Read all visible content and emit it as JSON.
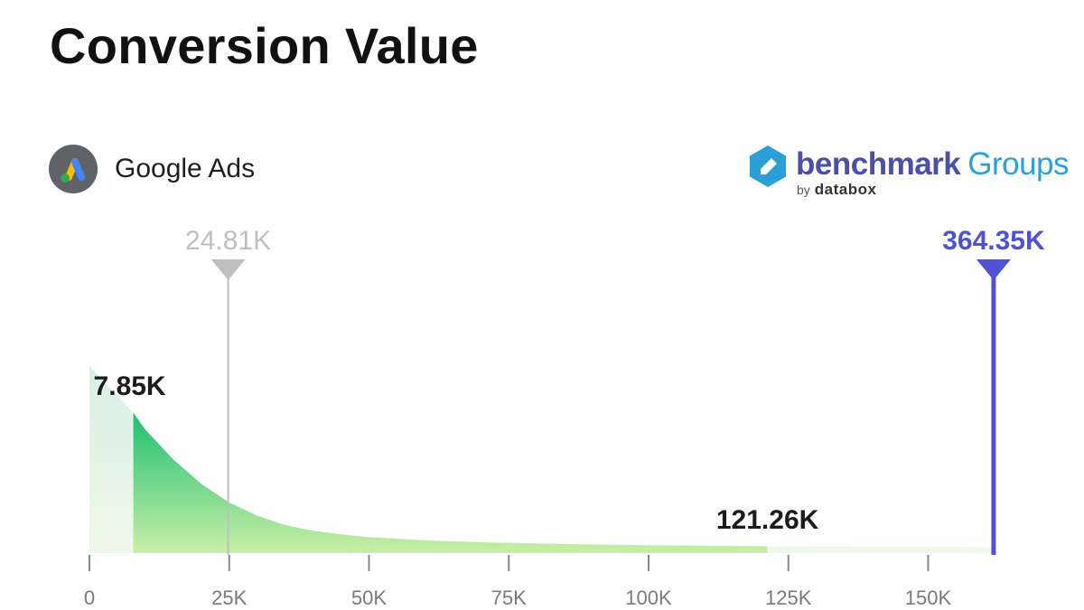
{
  "title": "Conversion Value",
  "source": {
    "name": "Google Ads",
    "icon": "google-ads-icon"
  },
  "brand": {
    "name": "benchmark",
    "suffix": "Groups",
    "by": "by",
    "company": "databox"
  },
  "chart_data": {
    "type": "area",
    "title": "Conversion Value",
    "xlabel": "",
    "ylabel": "",
    "xlim": [
      0,
      160000
    ],
    "x_ticks": [
      0,
      25000,
      50000,
      75000,
      100000,
      125000,
      150000
    ],
    "x_tick_labels": [
      "0",
      "25K",
      "50K",
      "75K",
      "100K",
      "125K",
      "150K"
    ],
    "grid": false,
    "legend": "none",
    "distribution": {
      "x": [
        0,
        7850,
        10000,
        15000,
        20000,
        25000,
        30000,
        35000,
        40000,
        45000,
        50000,
        60000,
        70000,
        80000,
        90000,
        100000,
        110000,
        121260,
        140000,
        160000
      ],
      "density": [
        1.0,
        0.75,
        0.66,
        0.5,
        0.37,
        0.27,
        0.2,
        0.15,
        0.12,
        0.1,
        0.085,
        0.068,
        0.058,
        0.051,
        0.046,
        0.042,
        0.039,
        0.036,
        0.034,
        0.032
      ]
    },
    "percentiles": {
      "p25": {
        "value": 7850,
        "label": "7.85K"
      },
      "p75": {
        "value": 121260,
        "label": "121.26K"
      }
    },
    "markers": [
      {
        "name": "median",
        "value": 24810,
        "label": "24.81K",
        "color": "#bdbfc1"
      },
      {
        "name": "top",
        "value": 161700,
        "label": "364.35K",
        "color": "#5052d6"
      }
    ],
    "colors": {
      "main_top": "#1fbf73",
      "main_bottom": "#c8efa5",
      "tail": "#e2f4dc",
      "tail_right": "#eef9ea",
      "axis": "#888888",
      "tick_label": "#7a7a7a"
    }
  }
}
